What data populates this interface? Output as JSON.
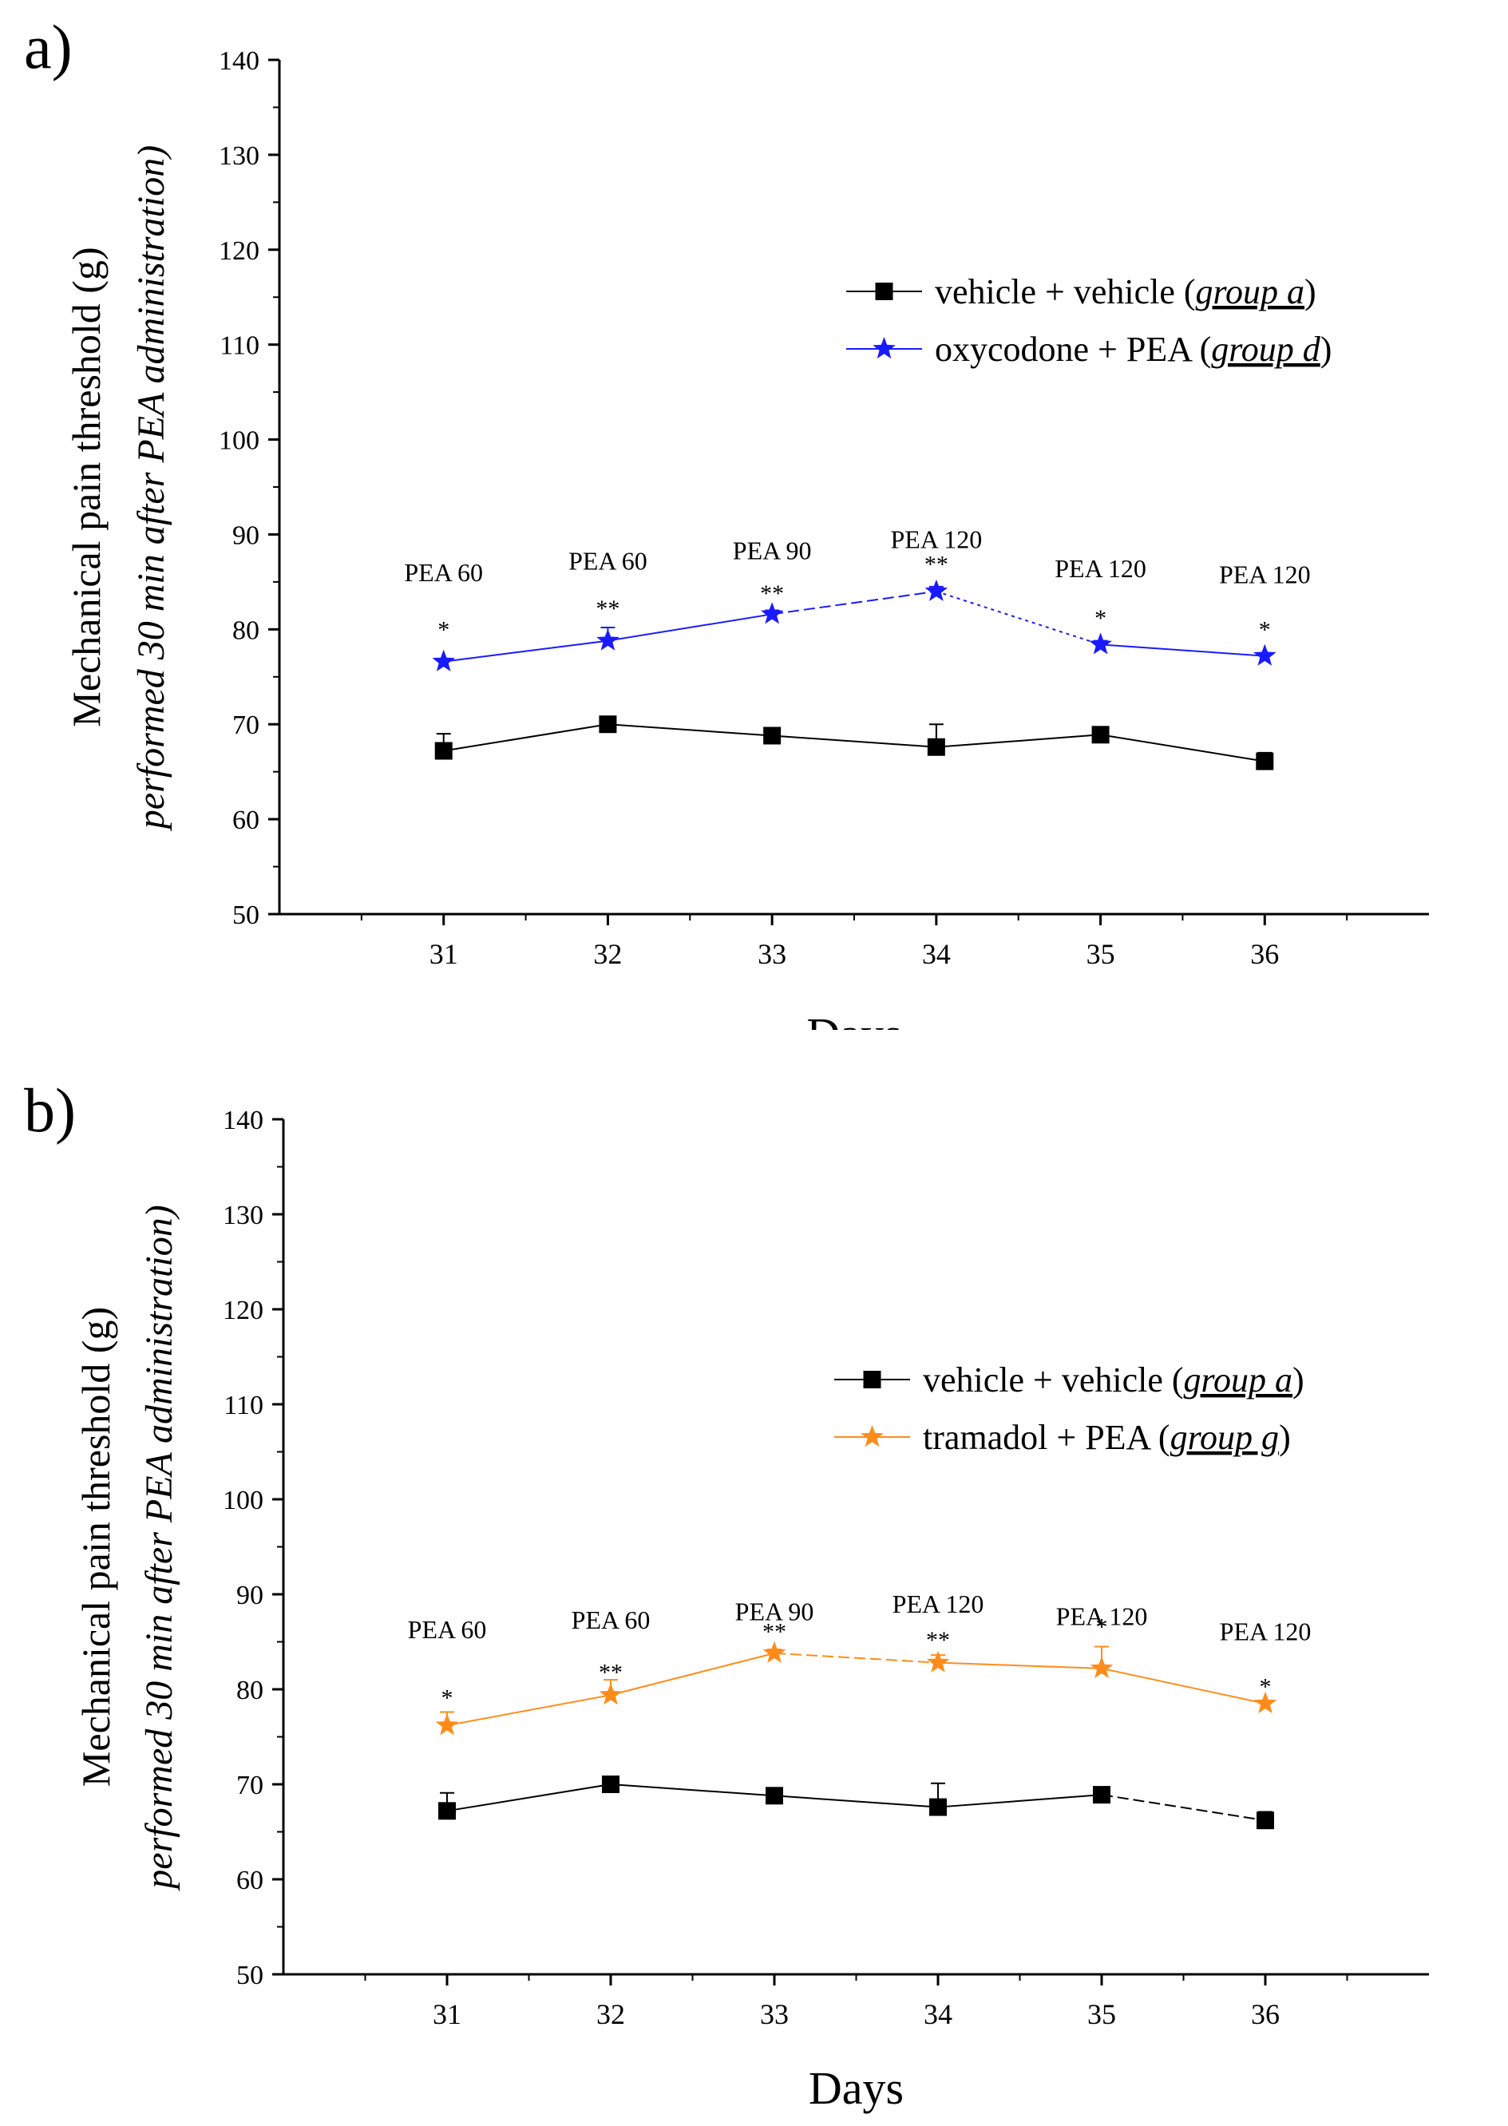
{
  "chart_data": [
    {
      "type": "line",
      "panel_label": "a)",
      "title": "",
      "xlabel": "Days",
      "ylabel": "Mechanical pain threshold (g)",
      "ylabel2": "performed 30 min after PEA administration)",
      "categories": [
        "31",
        "32",
        "33",
        "34",
        "35",
        "36"
      ],
      "x": [
        31,
        32,
        33,
        34,
        35,
        36
      ],
      "xlim": [
        30,
        37
      ],
      "ylim": [
        50,
        140
      ],
      "yticks": [
        50,
        60,
        70,
        80,
        90,
        100,
        110,
        120,
        130,
        140
      ],
      "grid": false,
      "legend_position": "top-right",
      "series": [
        {
          "name": "vehicle + vehicle",
          "group_label": "group a",
          "color": "#000000",
          "marker": "square",
          "values": [
            67.2,
            70.0,
            68.8,
            67.6,
            68.9,
            66.1
          ],
          "errors": [
            1.8,
            0.4,
            0.8,
            2.4,
            0.8,
            0.9
          ],
          "segment_styles": [
            "solid",
            "solid",
            "solid",
            "solid",
            "solid"
          ]
        },
        {
          "name": "oxycodone + PEA",
          "group_label": "group d",
          "color": "#1a1aff",
          "marker": "star",
          "values": [
            76.6,
            78.8,
            81.6,
            84.0,
            78.4,
            77.2
          ],
          "errors": [
            0.3,
            1.4,
            0.4,
            0.5,
            0.4,
            0.3
          ],
          "segment_styles": [
            "solid",
            "solid",
            "dashed",
            "dotted",
            "solid"
          ],
          "significance": [
            "*",
            "**",
            "**",
            "**",
            "*",
            "*"
          ],
          "doses": [
            "PEA 60",
            "PEA 60",
            "PEA 90",
            "PEA 120",
            "PEA 120",
            "PEA 120"
          ],
          "dose_label_values": [
            86,
            87.2,
            88.3,
            89.5,
            86.4,
            85.8
          ],
          "sig_label_values": [
            80.0,
            82.2,
            83.8,
            86.9,
            81.2,
            80.0
          ]
        }
      ]
    },
    {
      "type": "line",
      "panel_label": "b)",
      "title": "",
      "xlabel": "Days",
      "ylabel": "Mechanical pain threshold (g)",
      "ylabel2": "performed 30 min after PEA administration)",
      "categories": [
        "31",
        "32",
        "33",
        "34",
        "35",
        "36"
      ],
      "x": [
        31,
        32,
        33,
        34,
        35,
        36
      ],
      "xlim": [
        30,
        37
      ],
      "ylim": [
        50,
        140
      ],
      "yticks": [
        50,
        60,
        70,
        80,
        90,
        100,
        110,
        120,
        130,
        140
      ],
      "grid": false,
      "legend_position": "top-right",
      "series": [
        {
          "name": "vehicle + vehicle",
          "group_label": "group a",
          "color": "#000000",
          "marker": "square",
          "values": [
            67.2,
            70.0,
            68.8,
            67.6,
            68.9,
            66.2
          ],
          "errors": [
            1.9,
            0.4,
            0.8,
            2.5,
            0.8,
            0.9
          ],
          "segment_styles": [
            "solid",
            "solid",
            "solid",
            "solid",
            "dashed"
          ]
        },
        {
          "name": "tramadol + PEA",
          "group_label": "group g",
          "color": "#ff8c1a",
          "marker": "star",
          "values": [
            76.2,
            79.4,
            83.8,
            82.8,
            82.2,
            78.5
          ],
          "errors": [
            1.4,
            1.6,
            0.4,
            0.8,
            2.3,
            0.3
          ],
          "segment_styles": [
            "solid",
            "solid",
            "dashed",
            "solid",
            "solid"
          ],
          "significance": [
            "*",
            "**",
            "**",
            "**",
            "*",
            "*"
          ],
          "doses": [
            "PEA 60",
            "PEA 60",
            "PEA 90",
            "PEA 120",
            "PEA 120",
            "PEA 120"
          ],
          "dose_label_values": [
            86.3,
            87.3,
            88.2,
            89.0,
            87.7,
            86.1
          ],
          "sig_label_values": [
            79.1,
            81.8,
            86.1,
            85.2,
            86.6,
            80.3
          ]
        }
      ]
    }
  ]
}
